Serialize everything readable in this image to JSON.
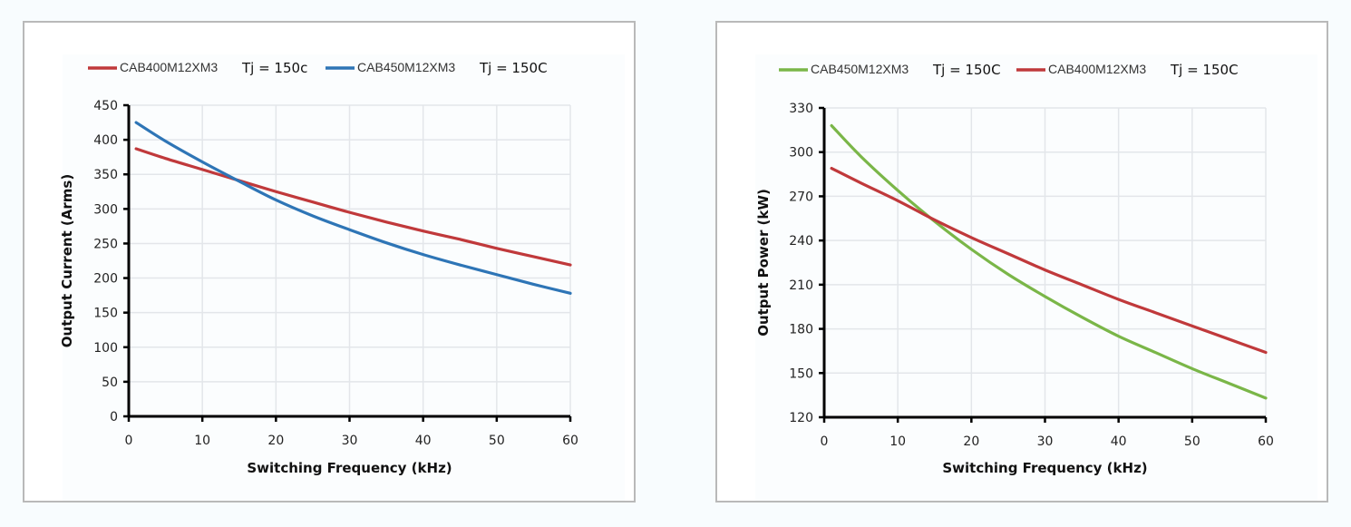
{
  "chart_data": [
    {
      "type": "line",
      "title": "",
      "xlabel": "Switching Frequency (kHz)",
      "ylabel": "Output Current (Arms)",
      "xlim": [
        0,
        60
      ],
      "ylim": [
        0,
        450
      ],
      "xticks": [
        "0",
        "10",
        "20",
        "30",
        "40",
        "50",
        "60"
      ],
      "yticks": [
        "0",
        "50",
        "100",
        "150",
        "200",
        "250",
        "300",
        "350",
        "400",
        "450"
      ],
      "grid": true,
      "legend_position": "top",
      "series": [
        {
          "name": "CAB400M12XM3",
          "suffix": "Tj = 150c",
          "color": "#c0393b",
          "x": [
            1,
            5,
            10,
            15,
            20,
            25,
            30,
            35,
            40,
            45,
            50,
            55,
            60
          ],
          "y": [
            387,
            373,
            357,
            341,
            325,
            310,
            295,
            281,
            268,
            256,
            243,
            231,
            219
          ]
        },
        {
          "name": "CAB450M12XM3",
          "suffix": "Tj = 150C",
          "color": "#2e75b6",
          "x": [
            1,
            5,
            10,
            15,
            20,
            25,
            30,
            35,
            40,
            45,
            50,
            55,
            60
          ],
          "y": [
            425,
            398,
            368,
            340,
            313,
            290,
            270,
            251,
            234,
            219,
            205,
            191,
            178
          ]
        }
      ]
    },
    {
      "type": "line",
      "title": "",
      "xlabel": "Switching Frequency (kHz)",
      "ylabel": "Output Power (kW)",
      "xlim": [
        0,
        60
      ],
      "ylim": [
        120,
        330
      ],
      "xticks": [
        "0",
        "10",
        "20",
        "30",
        "40",
        "50",
        "60"
      ],
      "yticks": [
        "120",
        "150",
        "180",
        "210",
        "240",
        "270",
        "300",
        "330"
      ],
      "grid": true,
      "legend_position": "top",
      "series": [
        {
          "name": "CAB450M12XM3",
          "suffix": "Tj = 150C",
          "color": "#7ab648",
          "x": [
            1,
            5,
            10,
            15,
            20,
            25,
            30,
            35,
            40,
            45,
            50,
            55,
            60
          ],
          "y": [
            318,
            297,
            274,
            253,
            234,
            217,
            202,
            188,
            175,
            164,
            153,
            143,
            133
          ]
        },
        {
          "name": "CAB400M12XM3",
          "suffix": "Tj = 150C",
          "color": "#c0393b",
          "x": [
            1,
            5,
            10,
            15,
            20,
            25,
            30,
            35,
            40,
            45,
            50,
            55,
            60
          ],
          "y": [
            289,
            279,
            267,
            254,
            242,
            231,
            220,
            210,
            200,
            191,
            182,
            173,
            164
          ]
        }
      ]
    }
  ]
}
